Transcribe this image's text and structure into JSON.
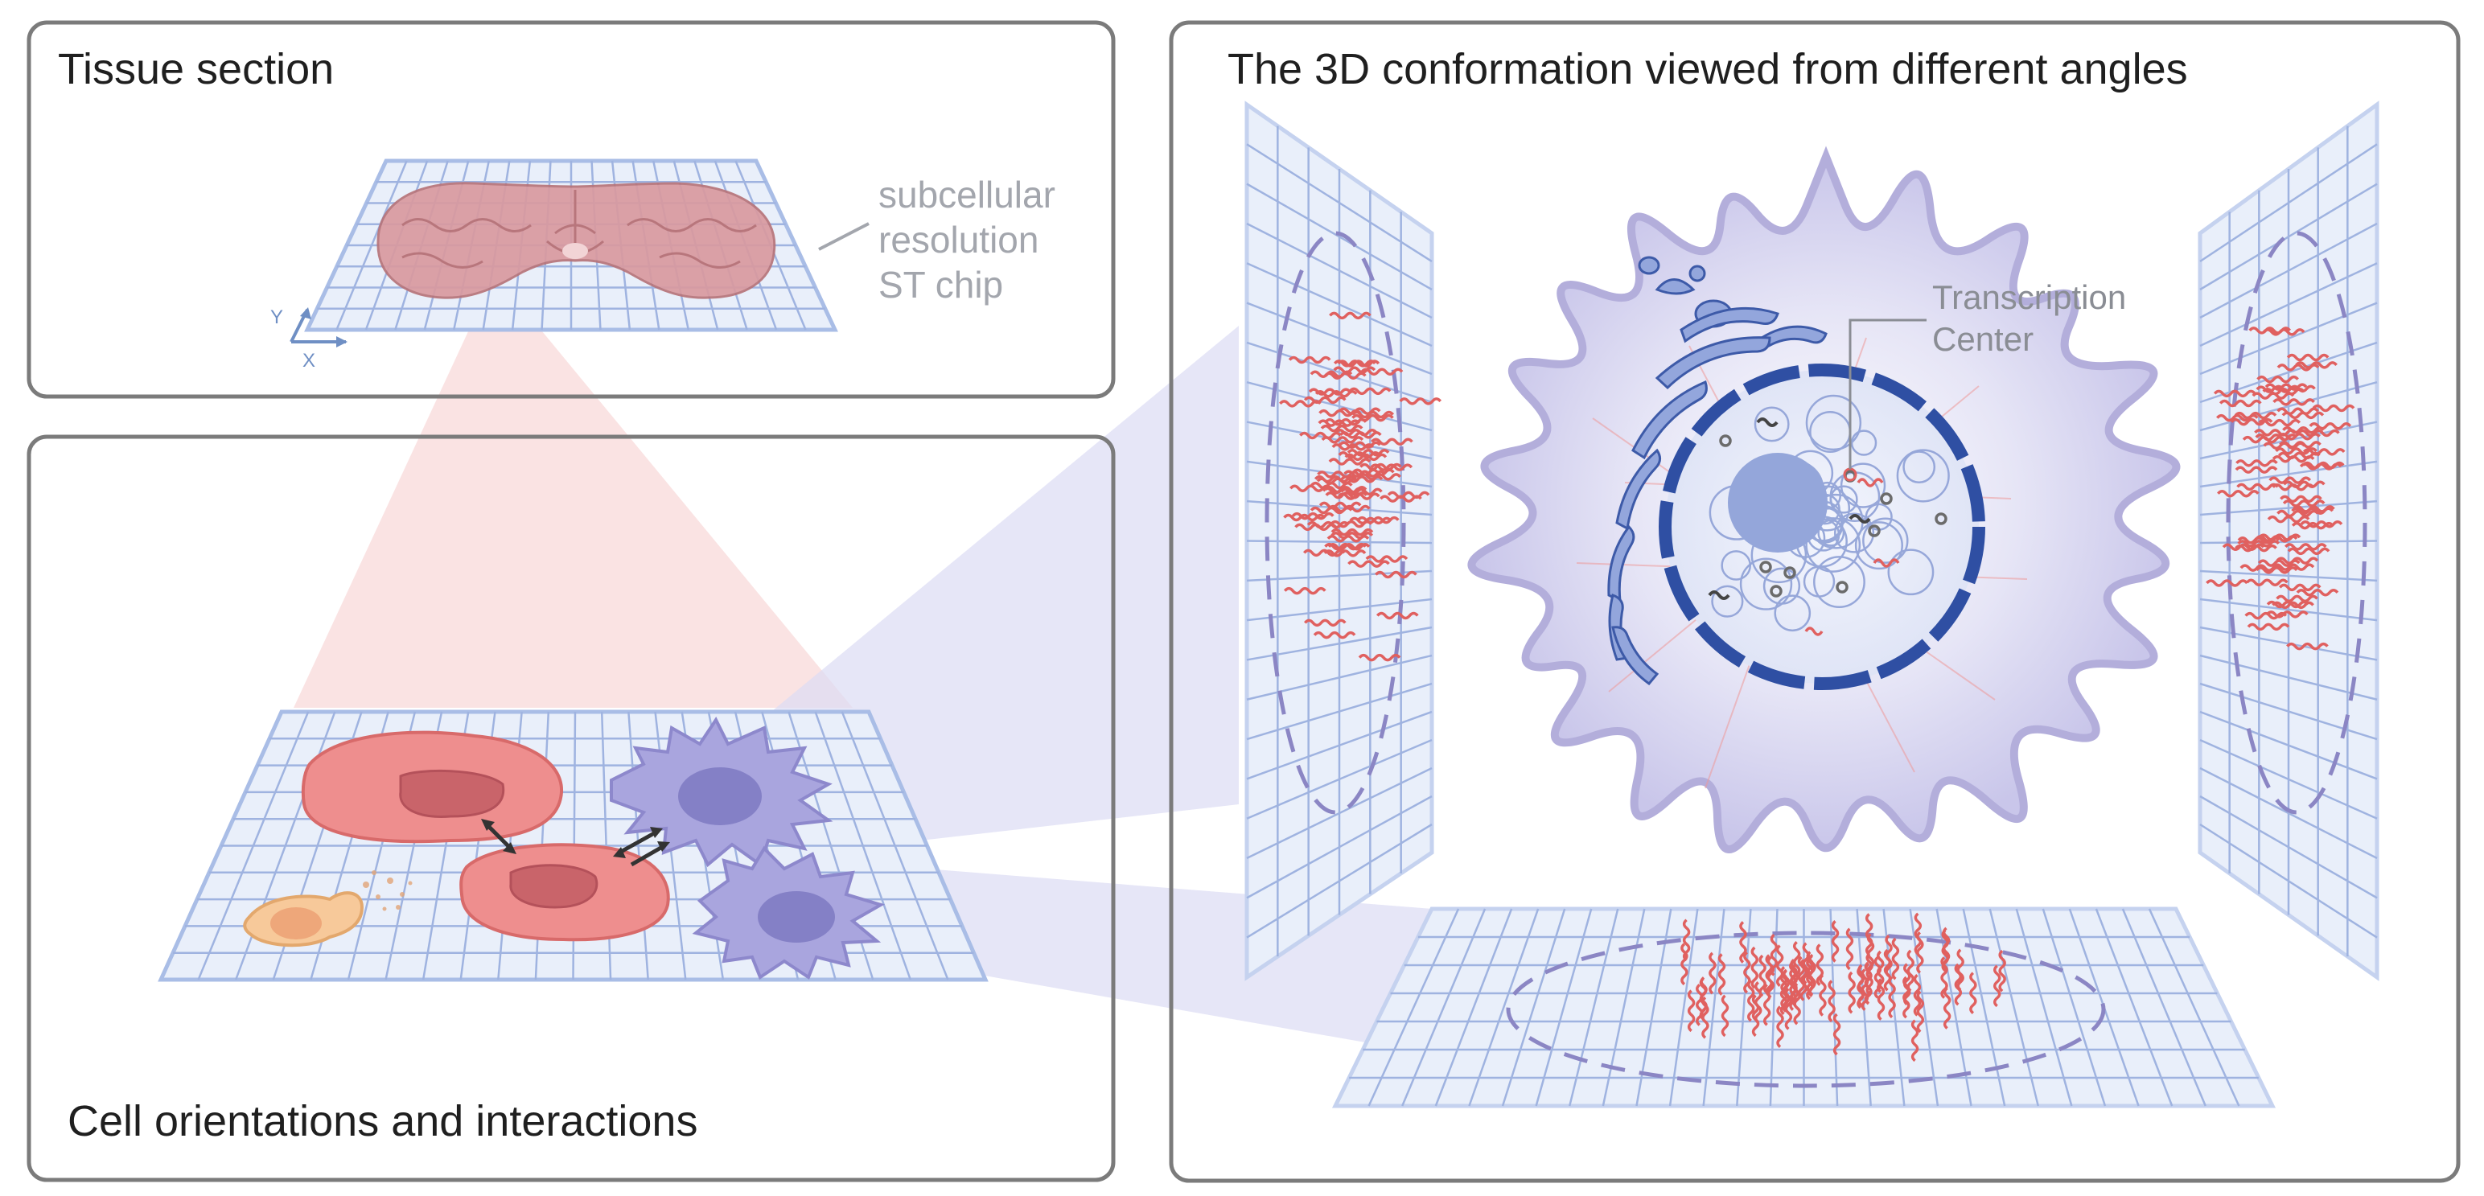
{
  "panels": {
    "tissue": {
      "title": "Tissue section"
    },
    "cells": {
      "title": "Cell orientations and interactions"
    },
    "conformation": {
      "title": "The 3D conformation viewed from different angles"
    }
  },
  "chip_label": {
    "line1": "subcellular",
    "line2": "resolution",
    "line3": "ST chip"
  },
  "axes": {
    "y": "Y",
    "x": "X"
  },
  "transcription_center": {
    "line1": "Transcription",
    "line2": "Center"
  },
  "colors": {
    "panel_border": "#7b7b7b",
    "grid_fill": "#e9effa",
    "grid_line": "#8fa4d6",
    "tissue_pink": "#d99a9f",
    "cell_red": "#e98181",
    "cell_purple": "#a9a5de",
    "transcript_red": "#e0605f",
    "nucleus_blue": "#2f4fa3"
  }
}
